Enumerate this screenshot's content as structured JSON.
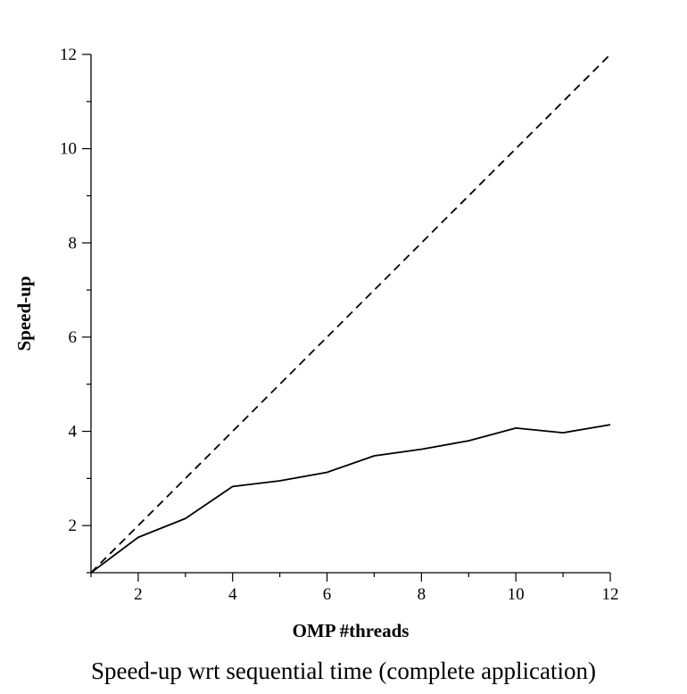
{
  "chart_data": {
    "type": "line",
    "xlabel": "OMP #threads",
    "ylabel": "Speed-up",
    "caption": "Speed-up wrt sequential time (complete application)",
    "xlim": [
      1,
      12
    ],
    "ylim": [
      1,
      12
    ],
    "x_ticks": [
      2,
      4,
      6,
      8,
      10,
      12
    ],
    "y_ticks": [
      2,
      4,
      6,
      8,
      10,
      12
    ],
    "grid": false,
    "legend": "none",
    "series": [
      {
        "style": "solid",
        "color": "#000000",
        "x": [
          1,
          2,
          3,
          4,
          5,
          6,
          7,
          8,
          9,
          10,
          11,
          12
        ],
        "y": [
          1.0,
          1.75,
          2.15,
          2.83,
          2.95,
          3.13,
          3.48,
          3.62,
          3.8,
          4.07,
          3.97,
          4.14
        ]
      },
      {
        "style": "dashed",
        "color": "#000000",
        "x": [
          1,
          12
        ],
        "y": [
          1,
          12
        ]
      }
    ]
  }
}
